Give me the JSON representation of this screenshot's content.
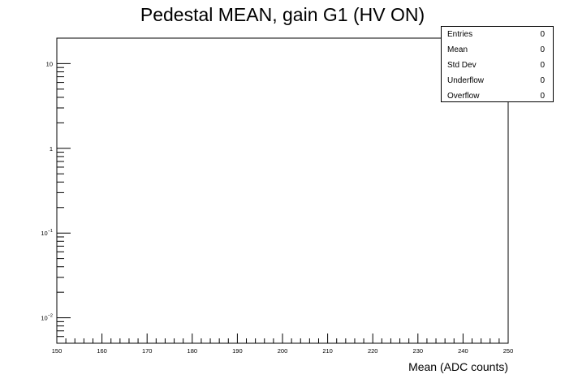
{
  "chart_data": {
    "type": "bar",
    "title": "Pedestal MEAN, gain G1 (HV ON)",
    "xlabel": "Mean (ADC counts)",
    "ylabel": "",
    "xlim": [
      150,
      250
    ],
    "ylim": [
      0.005,
      20
    ],
    "yscale": "log",
    "grid": false,
    "x_ticks": [
      "150",
      "160",
      "170",
      "180",
      "190",
      "200",
      "210",
      "220",
      "230",
      "240",
      "250"
    ],
    "y_ticks": [
      {
        "value": 10,
        "base": "10",
        "exp": ""
      },
      {
        "value": 1,
        "base": "1",
        "exp": ""
      },
      {
        "value": 0.1,
        "base": "10",
        "exp": "−1"
      },
      {
        "value": 0.01,
        "base": "10",
        "exp": "−2"
      }
    ],
    "values": [],
    "legend_position": "top-right",
    "stats": [
      {
        "key": "Entries",
        "value": "0"
      },
      {
        "key": "Mean",
        "value": "0"
      },
      {
        "key": "Std Dev",
        "value": "0"
      },
      {
        "key": "Underflow",
        "value": "0"
      },
      {
        "key": "Overflow",
        "value": "0"
      }
    ]
  }
}
